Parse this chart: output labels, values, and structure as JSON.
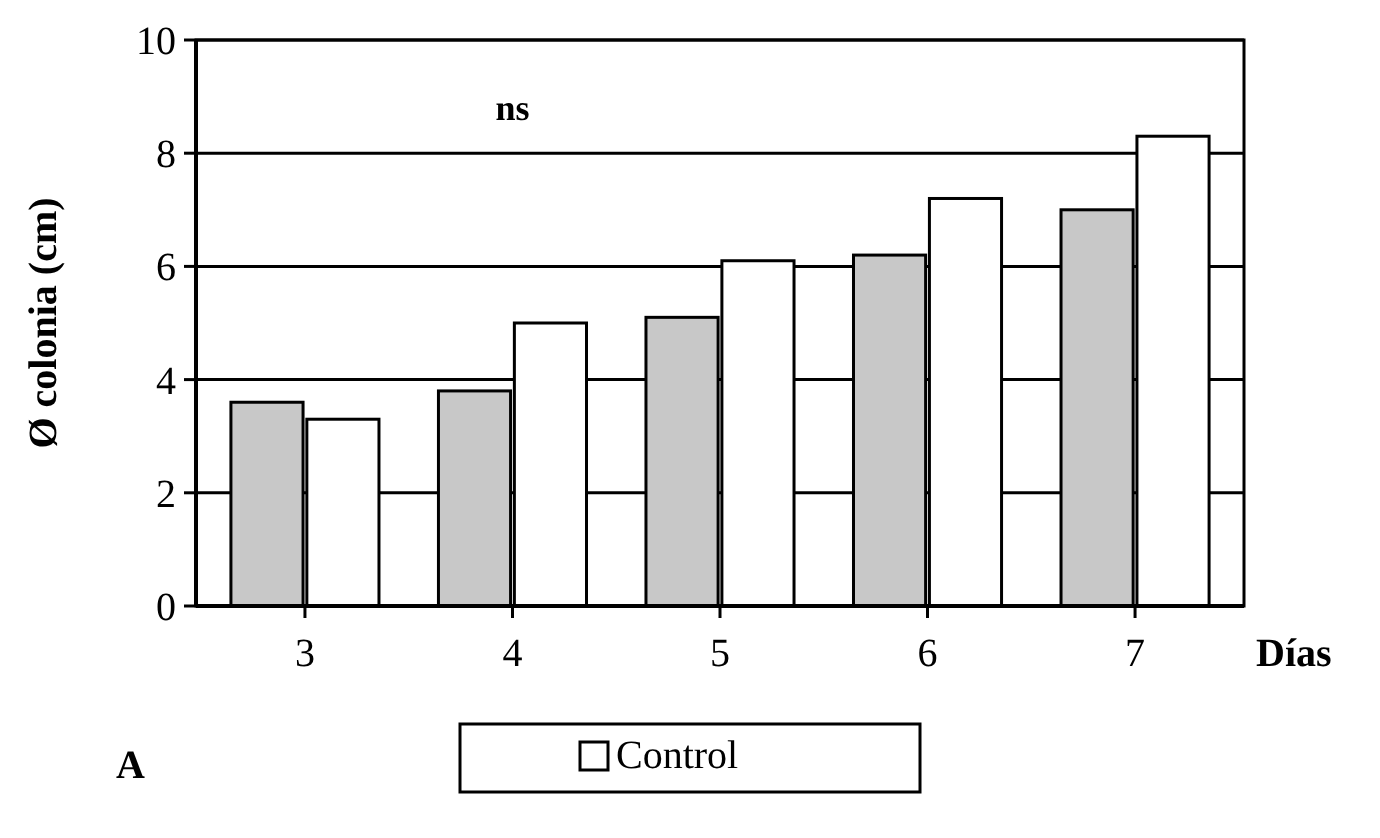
{
  "chart_data": {
    "type": "bar",
    "categories": [
      "3",
      "4",
      "5",
      "6",
      "7"
    ],
    "xlabel": "Días",
    "ylabel": "Ø colonia (cm)",
    "series": [
      {
        "color": "#c8c8c8",
        "values": [
          3.6,
          3.8,
          5.1,
          6.2,
          7.0
        ]
      },
      {
        "name": "Control",
        "color": "#ffffff",
        "values": [
          3.3,
          5.0,
          6.1,
          7.2,
          8.3
        ]
      }
    ],
    "ylim": [
      0,
      10
    ],
    "yticks": [
      0,
      2,
      4,
      6,
      8,
      10
    ],
    "grid": "y",
    "legend": "bottom",
    "annotations": [
      "ns",
      "A"
    ]
  }
}
